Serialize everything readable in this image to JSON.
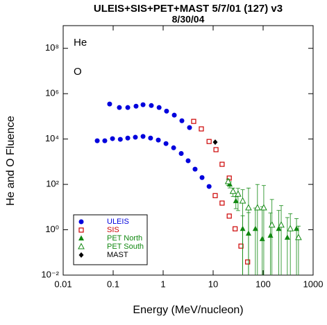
{
  "chart_data": {
    "type": "scatter",
    "title": "ULEIS+SIS+PET+MAST 5/7/01 (127) v3",
    "subtitle": "8/30/04",
    "x_label": "Energy (MeV/nucleon)",
    "y_label": "He and O Fluence",
    "annotations": [
      "He",
      "O"
    ],
    "log_x": true,
    "log_y": true,
    "grid": false,
    "legend": "lower left",
    "xlim": [
      0.01,
      1000
    ],
    "xticks": [
      0.01,
      0.1,
      1,
      10,
      100,
      1000
    ],
    "ylim": [
      0.01,
      1000000000
    ],
    "yticks": [
      {
        "value": 0.01,
        "label": "10⁻²"
      },
      {
        "value": 1,
        "label": "10⁰"
      },
      {
        "value": 100,
        "label": "10²"
      },
      {
        "value": 10000,
        "label": "10⁴"
      },
      {
        "value": 1000000,
        "label": "10⁶"
      },
      {
        "value": 100000000,
        "label": "10⁸"
      }
    ],
    "series": [
      {
        "name": "ULEIS",
        "color": "#0000dd",
        "marker": "circle",
        "x": [
          0.085,
          0.133,
          0.196,
          0.287,
          0.396,
          0.58,
          0.83,
          1.17,
          1.67,
          2.37,
          3.37,
          0.048,
          0.068,
          0.097,
          0.139,
          0.196,
          0.278,
          0.396,
          0.56,
          0.8,
          1.14,
          1.62,
          2.3,
          3.16,
          4.35,
          6.0,
          8.3
        ],
        "values": [
          350000,
          245000,
          245000,
          280000,
          325000,
          300000,
          245000,
          170000,
          113000,
          64000,
          32000,
          8400,
          8400,
          10400,
          9700,
          11000,
          12000,
          13000,
          11000,
          9000,
          6300,
          4100,
          2300,
          1100,
          470,
          200,
          81
        ]
      },
      {
        "name": "SIS",
        "color": "#cc0000",
        "marker": "square",
        "x": [
          4.08,
          5.8,
          8.3,
          11.4,
          15.1,
          21,
          11,
          15.1,
          21,
          27.5,
          36,
          49
        ],
        "values": [
          60000,
          28000,
          7800,
          3400,
          770,
          190,
          32,
          15,
          4,
          1.1,
          0.19,
          0.038
        ]
      },
      {
        "name": "PET North",
        "color": "#118811",
        "marker": "triangle",
        "x": [
          21.5,
          28.5,
          39,
          51,
          70,
          96,
          140,
          205,
          305,
          465
        ],
        "values": [
          100,
          18.5,
          1.1,
          0.68,
          1.1,
          0.39,
          0.55,
          1.1,
          0.45,
          1.1
        ],
        "errors": [
          30,
          10,
          3,
          5,
          8,
          10,
          5,
          6,
          3,
          2
        ]
      },
      {
        "name": "PET South",
        "color": "#118811",
        "marker": "open-triangle",
        "x": [
          20,
          25,
          31.5,
          39,
          51,
          77,
          103,
          150,
          230,
          350,
          510
        ],
        "values": [
          132,
          49,
          37,
          18.5,
          9.2,
          9.2,
          9.2,
          1.6,
          1.6,
          1.1,
          0.45
        ],
        "errors": [
          40,
          20,
          30,
          40,
          60,
          90,
          80,
          20,
          10,
          4,
          1
        ]
      },
      {
        "name": "MAST",
        "color": "#000000",
        "marker": "diamond",
        "x": [
          11
        ],
        "values": [
          7300
        ]
      }
    ]
  }
}
